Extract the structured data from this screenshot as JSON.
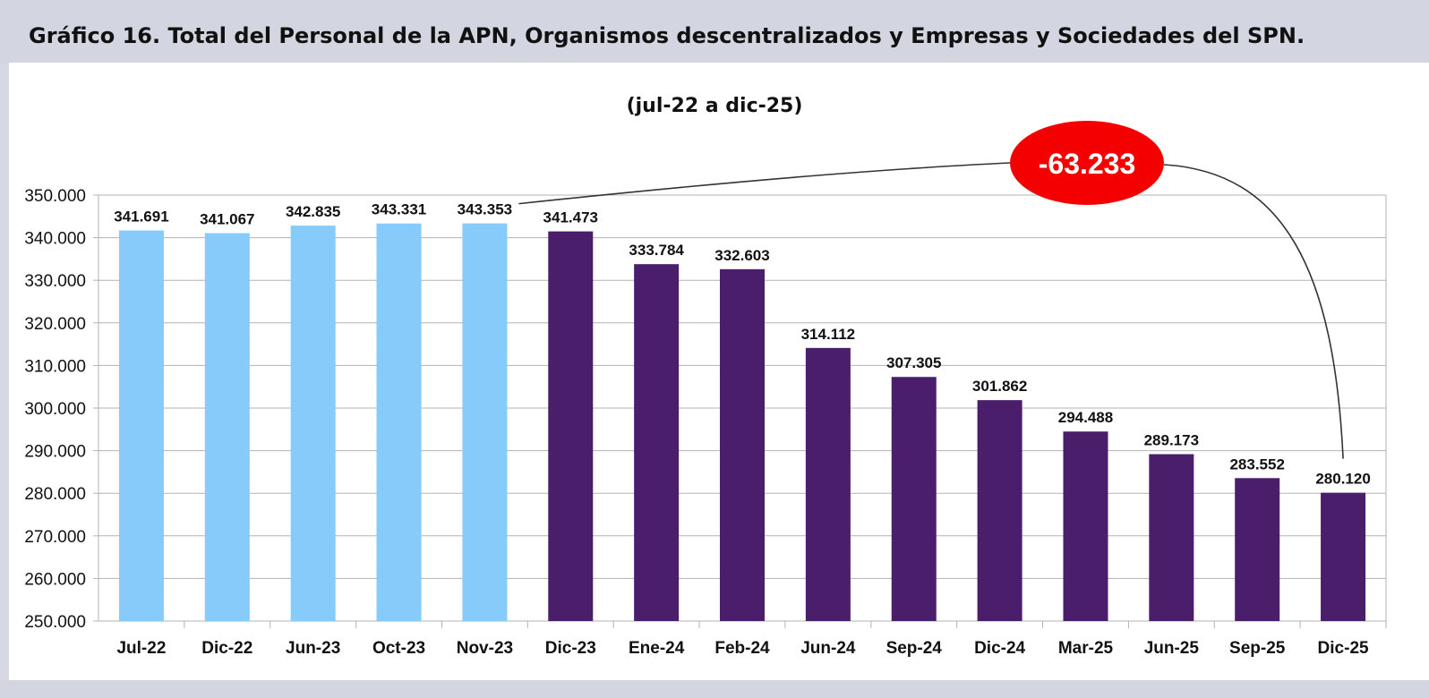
{
  "title": "Gráfico 16. Total del Personal de la APN, Organismos descentralizados y Empresas y Sociedades del SPN.",
  "subtitle": "(jul-22 a dic-25)",
  "chart_data": {
    "type": "bar",
    "categories": [
      "Jul-22",
      "Dic-22",
      "Jun-23",
      "Oct-23",
      "Nov-23",
      "Dic-23",
      "Ene-24",
      "Feb-24",
      "Jun-24",
      "Sep-24",
      "Dic-24",
      "Mar-25",
      "Jun-25",
      "Sep-25",
      "Dic-25"
    ],
    "values": [
      341691,
      341067,
      342835,
      343331,
      343353,
      341473,
      333784,
      332603,
      314112,
      307305,
      301862,
      294488,
      289173,
      283552,
      280120
    ],
    "value_labels": [
      "341.691",
      "341.067",
      "342.835",
      "343.331",
      "343.353",
      "341.473",
      "333.784",
      "332.603",
      "314.112",
      "307.305",
      "301.862",
      "294.488",
      "289.173",
      "283.552",
      "280.120"
    ],
    "bar_colors": [
      "#87cbfb",
      "#87cbfb",
      "#87cbfb",
      "#87cbfb",
      "#87cbfb",
      "#4a1e6a",
      "#4a1e6a",
      "#4a1e6a",
      "#4a1e6a",
      "#4a1e6a",
      "#4a1e6a",
      "#4a1e6a",
      "#4a1e6a",
      "#4a1e6a",
      "#4a1e6a"
    ],
    "ylim": [
      250000,
      350000
    ],
    "yticks": [
      250000,
      260000,
      270000,
      280000,
      290000,
      300000,
      310000,
      320000,
      330000,
      340000,
      350000
    ],
    "ytick_labels": [
      "250.000",
      "260.000",
      "270.000",
      "280.000",
      "290.000",
      "300.000",
      "310.000",
      "320.000",
      "330.000",
      "340.000",
      "350.000"
    ],
    "grid": true,
    "annotation": {
      "text": "-63.233",
      "from_category": "Nov-23",
      "to_category": "Dic-25",
      "color": "#f40000"
    }
  }
}
